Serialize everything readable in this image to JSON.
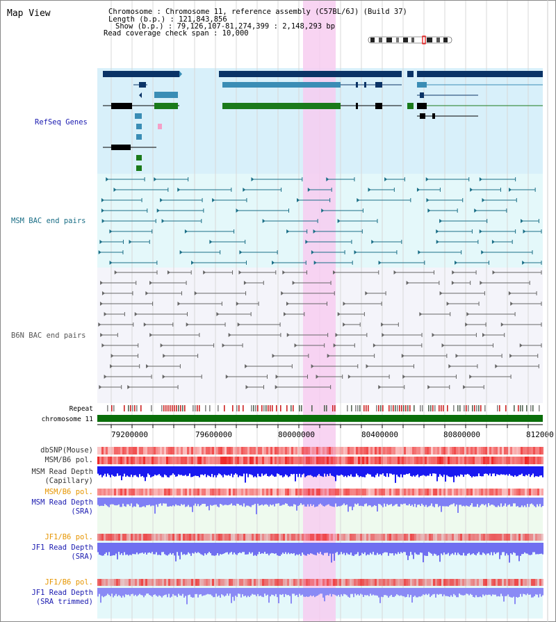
{
  "header": {
    "view_title": "Map View",
    "info_lines": [
      "Chromosome     : Chromosome 11, reference assembly (C57BL/6J) (Build 37)",
      "Length (b.p.) : 121,843,856",
      "Show (b.p.) : 79,126,107-81,274,399 : 2,148,293 bp",
      "Read coverage check span : 10,000"
    ]
  },
  "tracks": {
    "refseq": "RefSeq Genes",
    "msm_bac": "MSM BAC end pairs",
    "b6n_bac": "B6N BAC end pairs",
    "repeat": "Repeat",
    "chromosome": "chromosome 11",
    "dbsnp": "dbSNP(Mouse)",
    "msm_b6_pol_1": "MSM/B6 pol.",
    "msm_depth_cap_1": "MSM Read Depth",
    "msm_depth_cap_2": "(Capillary)",
    "msm_b6_pol_2": "MSM/B6 pol.",
    "msm_depth_sra_1": "MSM Read Depth",
    "msm_depth_sra_2": "(SRA)",
    "jf1_pol_1": "JF1/B6 pol.",
    "jf1_depth_sra_1": "JF1 Read Depth",
    "jf1_depth_sra_2": "(SRA)",
    "jf1_pol_2": "JF1/B6 pol.",
    "jf1_depth_trim_1": "JF1 Read Depth",
    "jf1_depth_trim_2": "(SRA trimmed)"
  },
  "axis": {
    "ticks": [
      "79200000",
      "79600000",
      "80000000",
      "80400000",
      "80800000",
      "812000"
    ]
  },
  "colors": {
    "highlight": "#f7cdf0",
    "refseq_bg": "#d8f0fa",
    "msm_bg": "#e4f8fa",
    "b6n_bg": "#f4f4fa",
    "gene_dark": "#0a3366",
    "gene_mid": "#3a8db5",
    "gene_green": "#1a7a1a",
    "msm_line": "#1a6e86",
    "b6n_line": "#666666",
    "chromosome": "#0a6e0a",
    "depth_dark": "#1a1af0",
    "depth_light": "#7f7ff5",
    "label_blue": "#1a1ab0",
    "label_teal": "#1a6e86",
    "label_orange": "#e69500"
  }
}
